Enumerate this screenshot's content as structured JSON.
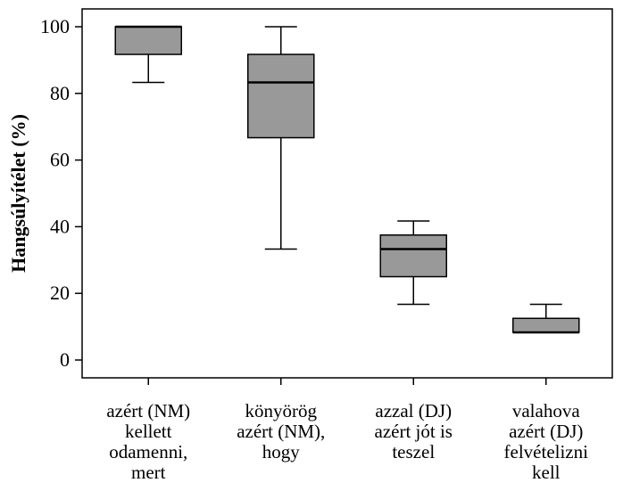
{
  "chart_data": {
    "type": "box",
    "ylabel": "Hangsúlyítélet (%)",
    "xlabel": "",
    "ylim": [
      -5,
      105
    ],
    "yticks": [
      0,
      20,
      40,
      60,
      80,
      100
    ],
    "grid": false,
    "box_color": "#999999",
    "categories": [
      [
        "azért (NM)",
        "kellett",
        "odamenni,",
        "mert"
      ],
      [
        "könyörög",
        "azért (NM),",
        "hogy"
      ],
      [
        "azzal (DJ)",
        "azért jót is",
        "teszel"
      ],
      [
        "valahova",
        "azért (DJ)",
        "felvételizni",
        "kell"
      ]
    ],
    "boxes": [
      {
        "whisker_low": 83.3,
        "q1": 91.7,
        "median": 100,
        "q3": 100,
        "whisker_high": 100
      },
      {
        "whisker_low": 33.3,
        "q1": 66.7,
        "median": 83.3,
        "q3": 91.7,
        "whisker_high": 100
      },
      {
        "whisker_low": 16.7,
        "q1": 25,
        "median": 33.3,
        "q3": 37.5,
        "whisker_high": 41.7
      },
      {
        "whisker_low": 8.3,
        "q1": 8.3,
        "median": 8.3,
        "q3": 12.5,
        "whisker_high": 16.7
      }
    ]
  }
}
